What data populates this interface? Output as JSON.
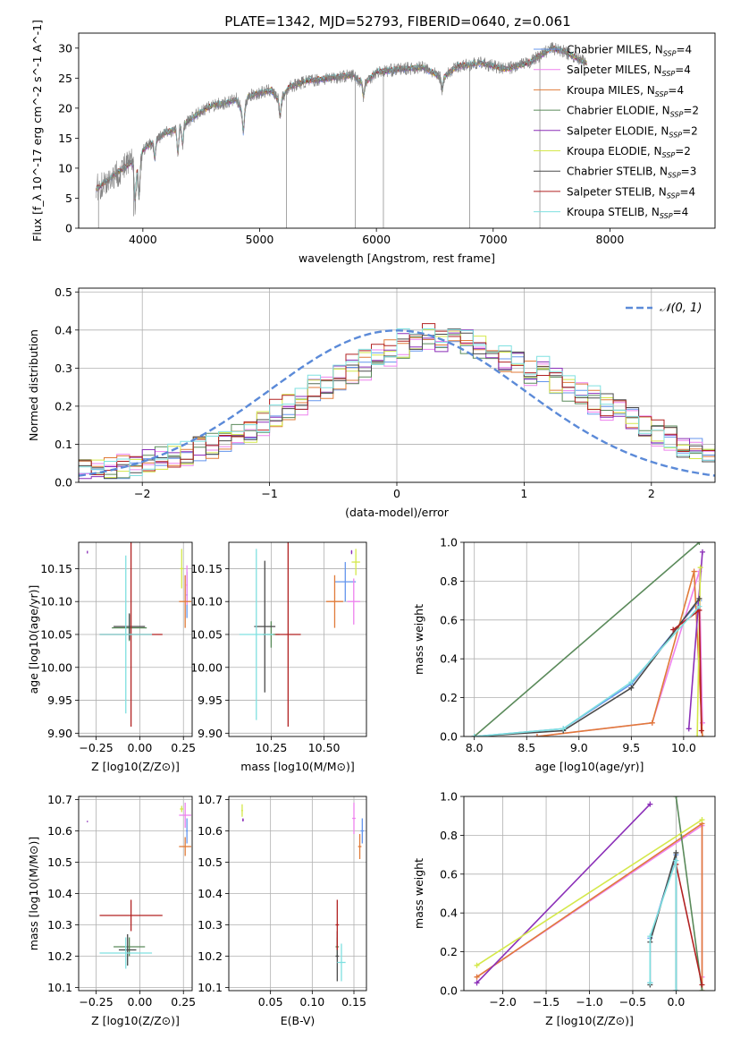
{
  "figure_title": "PLATE=1342, MJD=52793, FIBERID=0640, z=0.061",
  "series_styles": [
    {
      "name": "Chabrier MILES",
      "label_sub": "4",
      "color": "#6495ed"
    },
    {
      "name": "Salpeter MILES",
      "label_sub": "4",
      "color": "#ee82ee"
    },
    {
      "name": "Kroupa MILES",
      "label_sub": "4",
      "color": "#e07b39"
    },
    {
      "name": "Chabrier ELODIE",
      "label_sub": "2",
      "color": "#5a8a5a"
    },
    {
      "name": "Salpeter ELODIE",
      "label_sub": "2",
      "color": "#8b2fb8"
    },
    {
      "name": "Kroupa ELODIE",
      "label_sub": "2",
      "color": "#d4e84a"
    },
    {
      "name": "Chabrier STELIB",
      "label_sub": "3",
      "color": "#4a4a4a"
    },
    {
      "name": "Salpeter STELIB",
      "label_sub": "4",
      "color": "#b22222"
    },
    {
      "name": "Kroupa STELIB",
      "label_sub": "4",
      "color": "#7fe0e0"
    }
  ],
  "chart_data": [
    {
      "id": "spectrum",
      "type": "line",
      "xlabel": "wavelength [Angstrom, rest frame]",
      "ylabel": "Flux [f_λ 10^-17 erg cm^-2 s^-1 A^-1]",
      "xlim": [
        3450,
        8900
      ],
      "ylim": [
        0,
        32.5
      ],
      "xticks": [
        4000,
        5000,
        6000,
        7000,
        8000
      ],
      "yticks": [
        0,
        5,
        10,
        15,
        20,
        25,
        30
      ],
      "grid": false,
      "legend": "right",
      "data_color": "#808080",
      "anchors": [
        [
          3600,
          6.5
        ],
        [
          3700,
          8
        ],
        [
          3800,
          9.5
        ],
        [
          3900,
          11
        ],
        [
          3950,
          10
        ],
        [
          4000,
          13
        ],
        [
          4100,
          14.5
        ],
        [
          4200,
          16
        ],
        [
          4300,
          16.5
        ],
        [
          4400,
          18
        ],
        [
          4500,
          19.5
        ],
        [
          4600,
          20.5
        ],
        [
          4700,
          20.8
        ],
        [
          4800,
          21.5
        ],
        [
          4860,
          19
        ],
        [
          4900,
          22
        ],
        [
          5000,
          22.5
        ],
        [
          5100,
          23
        ],
        [
          5175,
          21
        ],
        [
          5250,
          23.5
        ],
        [
          5400,
          24.5
        ],
        [
          5600,
          25
        ],
        [
          5800,
          25.5
        ],
        [
          5890,
          24
        ],
        [
          6000,
          26
        ],
        [
          6200,
          26.5
        ],
        [
          6400,
          26.8
        ],
        [
          6563,
          25
        ],
        [
          6700,
          27
        ],
        [
          6900,
          27.5
        ],
        [
          7100,
          26.5
        ],
        [
          7300,
          27.5
        ],
        [
          7500,
          30
        ],
        [
          7600,
          29.5
        ],
        [
          7700,
          28.5
        ],
        [
          7800,
          27.5
        ]
      ],
      "absorption": [
        [
          3933,
          6
        ],
        [
          3968,
          6
        ],
        [
          4102,
          3
        ],
        [
          4300,
          4
        ],
        [
          4340,
          3
        ],
        [
          4861,
          3
        ],
        [
          5175,
          2.5
        ],
        [
          5890,
          2
        ],
        [
          6563,
          2
        ]
      ],
      "spikes": [
        [
          3620,
          0
        ],
        [
          3920,
          2
        ],
        [
          5230,
          0
        ],
        [
          5820,
          0
        ],
        [
          6060,
          0
        ],
        [
          6800,
          0
        ],
        [
          7400,
          0
        ]
      ]
    },
    {
      "id": "residuals",
      "type": "bar",
      "xlabel": "(data-model)/error",
      "ylabel": "Normed distribution",
      "xlim": [
        -2.5,
        2.5
      ],
      "ylim": [
        0,
        0.51
      ],
      "xticks": [
        -2,
        -1,
        0,
        1,
        2
      ],
      "yticks": [
        0.0,
        0.1,
        0.2,
        0.3,
        0.4,
        0.5
      ],
      "grid": true,
      "bins": 50,
      "legend": "top-right",
      "reference_curve": {
        "label": "𝒩(0, 1)",
        "color": "#5b8ad8",
        "mu": 0,
        "sigma": 1
      },
      "base": [
        0.03,
        0.035,
        0.04,
        0.045,
        0.05,
        0.055,
        0.06,
        0.07,
        0.08,
        0.09,
        0.1,
        0.11,
        0.13,
        0.14,
        0.16,
        0.18,
        0.2,
        0.22,
        0.24,
        0.26,
        0.28,
        0.3,
        0.31,
        0.33,
        0.35,
        0.36,
        0.37,
        0.38,
        0.38,
        0.38,
        0.37,
        0.36,
        0.35,
        0.33,
        0.32,
        0.3,
        0.29,
        0.27,
        0.25,
        0.24,
        0.22,
        0.2,
        0.19,
        0.17,
        0.15,
        0.13,
        0.12,
        0.1,
        0.09,
        0.08
      ]
    },
    {
      "id": "age-vs-Z",
      "type": "scatter",
      "xlabel": "Z [log10(Z/Z⊙)]",
      "ylabel": "age  [log10(age/yr)]",
      "xlim": [
        -0.35,
        0.3
      ],
      "ylim": [
        9.895,
        10.19
      ],
      "xticks": [
        -0.25,
        0.0,
        0.25
      ],
      "yticks": [
        9.9,
        9.95,
        10.0,
        10.05,
        10.1,
        10.15
      ],
      "grid": true,
      "points": [
        [
          0.27,
          10.11,
          0.005,
          0.035
        ],
        [
          0.27,
          10.125,
          0.005,
          0.03
        ],
        [
          0.26,
          10.1,
          0.035,
          0.04
        ],
        [
          -0.06,
          10.06,
          0.1,
          0.02
        ],
        [
          -0.3,
          10.175,
          0.002,
          0.002
        ],
        [
          0.24,
          10.15,
          0.01,
          0.03
        ],
        [
          -0.06,
          10.062,
          0.09,
          0.02
        ],
        [
          -0.05,
          10.05,
          0.18,
          0.14
        ],
        [
          -0.08,
          10.05,
          0.15,
          0.12
        ]
      ]
    },
    {
      "id": "age-vs-mass",
      "type": "scatter",
      "xlabel": "mass [log10(M/M⊙)]",
      "ylabel": "",
      "xlim": [
        10.05,
        10.7
      ],
      "ylim": [
        9.895,
        10.19
      ],
      "xticks": [
        10.25,
        10.5
      ],
      "yticks": [
        9.9,
        9.95,
        10.0,
        10.05,
        10.1,
        10.15
      ],
      "grid": true,
      "points": [
        [
          10.6,
          10.13,
          0.05,
          0.03
        ],
        [
          10.64,
          10.1,
          0.03,
          0.035
        ],
        [
          10.55,
          10.1,
          0.04,
          0.04
        ],
        [
          10.25,
          10.05,
          0.04,
          0.02
        ],
        [
          10.63,
          10.175,
          0.003,
          0.003
        ],
        [
          10.65,
          10.16,
          0.02,
          0.02
        ],
        [
          10.22,
          10.062,
          0.05,
          0.1
        ],
        [
          10.33,
          10.05,
          0.06,
          0.14
        ],
        [
          10.18,
          10.05,
          0.08,
          0.13
        ]
      ]
    },
    {
      "id": "massweight-vs-age",
      "type": "line",
      "xlabel": "age  [log10(age/yr)]",
      "ylabel": "mass weight",
      "xlim": [
        7.9,
        10.3
      ],
      "ylim": [
        0,
        1
      ],
      "xticks": [
        8.0,
        8.5,
        9.0,
        9.5,
        10.0
      ],
      "yticks": [
        0.0,
        0.2,
        0.4,
        0.6,
        0.8,
        1.0
      ],
      "grid": true,
      "paths": [
        {
          "series": 0,
          "points": [
            [
              8.0,
              0.0
            ],
            [
              8.85,
              0.04
            ],
            [
              9.5,
              0.27
            ],
            [
              10.15,
              0.7
            ]
          ]
        },
        {
          "series": 1,
          "points": [
            [
              8.6,
              0.0
            ],
            [
              9.7,
              0.07
            ],
            [
              10.15,
              0.85
            ],
            [
              10.18,
              0.07
            ]
          ]
        },
        {
          "series": 2,
          "points": [
            [
              8.6,
              0.0
            ],
            [
              9.7,
              0.07
            ],
            [
              10.1,
              0.85
            ],
            [
              10.18,
              0.0
            ]
          ]
        },
        {
          "series": 3,
          "points": [
            [
              8.0,
              0.0
            ],
            [
              10.15,
              1.0
            ]
          ]
        },
        {
          "series": 4,
          "points": [
            [
              10.05,
              0.04
            ],
            [
              10.18,
              0.95
            ]
          ]
        },
        {
          "series": 5,
          "points": [
            [
              10.13,
              0.0
            ],
            [
              10.16,
              0.87
            ]
          ]
        },
        {
          "series": 6,
          "points": [
            [
              8.0,
              0.0
            ],
            [
              8.85,
              0.03
            ],
            [
              9.5,
              0.25
            ],
            [
              10.15,
              0.71
            ]
          ]
        },
        {
          "series": 7,
          "points": [
            [
              9.9,
              0.55
            ],
            [
              10.15,
              0.65
            ],
            [
              10.17,
              0.03
            ]
          ]
        },
        {
          "series": 8,
          "points": [
            [
              8.0,
              0.0
            ],
            [
              8.85,
              0.04
            ],
            [
              9.5,
              0.28
            ],
            [
              10.15,
              0.67
            ]
          ]
        }
      ]
    },
    {
      "id": "mass-vs-Z",
      "type": "scatter",
      "xlabel": "Z [log10(Z/Z⊙)]",
      "ylabel": "mass [log10(M/M⊙)]",
      "xlim": [
        -0.35,
        0.3
      ],
      "ylim": [
        10.09,
        10.71
      ],
      "xticks": [
        -0.25,
        0.0,
        0.25
      ],
      "yticks": [
        10.1,
        10.2,
        10.3,
        10.4,
        10.5,
        10.6,
        10.7
      ],
      "grid": true,
      "points": [
        [
          0.27,
          10.6,
          0.005,
          0.04
        ],
        [
          0.26,
          10.65,
          0.035,
          0.04
        ],
        [
          0.26,
          10.55,
          0.035,
          0.03
        ],
        [
          -0.06,
          10.23,
          0.09,
          0.03
        ],
        [
          -0.3,
          10.63,
          0.002,
          0.002
        ],
        [
          0.24,
          10.67,
          0.01,
          0.01
        ],
        [
          -0.07,
          10.22,
          0.05,
          0.05
        ],
        [
          -0.05,
          10.33,
          0.18,
          0.05
        ],
        [
          -0.08,
          10.21,
          0.15,
          0.05
        ]
      ]
    },
    {
      "id": "mass-vs-ebv",
      "type": "scatter",
      "xlabel": "E(B-V)",
      "ylabel": "",
      "xlim": [
        0.0,
        0.165
      ],
      "ylim": [
        10.09,
        10.71
      ],
      "xticks": [
        0.05,
        0.1,
        0.15
      ],
      "yticks": [
        10.1,
        10.2,
        10.3,
        10.4,
        10.5,
        10.6,
        10.7
      ],
      "grid": true,
      "points": [
        [
          0.16,
          10.6,
          0.002,
          0.04
        ],
        [
          0.15,
          10.64,
          0.002,
          0.05
        ],
        [
          0.157,
          10.55,
          0.002,
          0.04
        ],
        [
          0.13,
          10.23,
          0.002,
          0.03
        ],
        [
          0.017,
          10.635,
          0.001,
          0.005
        ],
        [
          0.016,
          10.665,
          0.001,
          0.02
        ],
        [
          0.13,
          10.2,
          0.002,
          0.08
        ],
        [
          0.13,
          10.3,
          0.002,
          0.08
        ],
        [
          0.135,
          10.18,
          0.005,
          0.06
        ]
      ]
    },
    {
      "id": "massweight-vs-Z",
      "type": "line",
      "xlabel": "Z [log10(Z/Z⊙)]",
      "ylabel": "mass weight",
      "xlim": [
        -2.45,
        0.45
      ],
      "ylim": [
        0,
        1
      ],
      "xticks": [
        -2.0,
        -1.5,
        -1.0,
        -0.5,
        0.0
      ],
      "yticks": [
        0.0,
        0.2,
        0.4,
        0.6,
        0.8,
        1.0
      ],
      "grid": true,
      "paths": [
        {
          "series": 0,
          "points": [
            [
              -0.3,
              0.04
            ],
            [
              -0.3,
              0.27
            ],
            [
              0.0,
              0.7
            ],
            [
              0.0,
              0.0
            ]
          ]
        },
        {
          "series": 1,
          "points": [
            [
              -2.3,
              0.07
            ],
            [
              0.3,
              0.85
            ],
            [
              0.3,
              0.07
            ]
          ]
        },
        {
          "series": 2,
          "points": [
            [
              -2.3,
              0.07
            ],
            [
              0.3,
              0.86
            ],
            [
              0.3,
              0.0
            ]
          ]
        },
        {
          "series": 3,
          "points": [
            [
              0.0,
              1.0
            ],
            [
              0.3,
              0.0
            ]
          ]
        },
        {
          "series": 4,
          "points": [
            [
              -2.3,
              0.04
            ],
            [
              -0.3,
              0.96
            ]
          ]
        },
        {
          "series": 5,
          "points": [
            [
              -2.3,
              0.13
            ],
            [
              0.3,
              0.88
            ]
          ]
        },
        {
          "series": 6,
          "points": [
            [
              -0.3,
              0.03
            ],
            [
              -0.3,
              0.25
            ],
            [
              0.0,
              0.71
            ],
            [
              0.0,
              0.0
            ]
          ]
        },
        {
          "series": 7,
          "points": [
            [
              0.0,
              0.65
            ],
            [
              0.3,
              0.03
            ]
          ]
        },
        {
          "series": 8,
          "points": [
            [
              -0.3,
              0.04
            ],
            [
              -0.3,
              0.28
            ],
            [
              0.0,
              0.67
            ],
            [
              0.0,
              0.0
            ]
          ]
        }
      ]
    }
  ]
}
